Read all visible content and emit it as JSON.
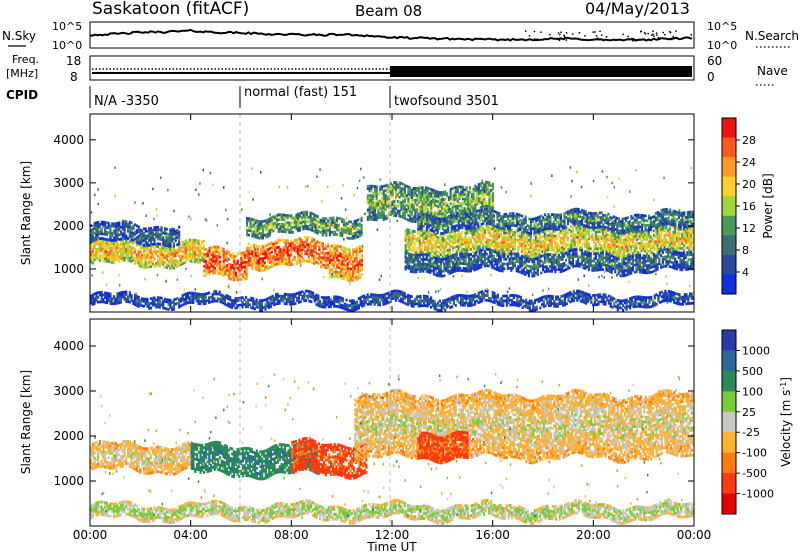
{
  "header": {
    "station": "Saskatoon (fitACF)",
    "beam": "Beam 08",
    "date": "04/May/2013"
  },
  "noise_panel": {
    "left_label": "N.Sky",
    "right_label": "N.Search",
    "left_ticks": [
      "10^5",
      "10^0"
    ],
    "right_ticks": [
      "10^5",
      "10^0"
    ]
  },
  "freq_panel": {
    "left_label_line1": "Freq.",
    "left_label_line2": "[MHz]",
    "left_ticks": [
      "18",
      "8"
    ],
    "right_ticks": [
      "60",
      "0"
    ],
    "right_label": "Nave"
  },
  "cpid_panel": {
    "label": "CPID",
    "segments": [
      {
        "text": "N/A -3350",
        "start_hour": 0,
        "end_hour": 6
      },
      {
        "text": "normal (fast) 151",
        "start_hour": 6,
        "end_hour": 12
      },
      {
        "text": "twofsound 3501",
        "start_hour": 12,
        "end_hour": 24
      }
    ]
  },
  "time_axis": {
    "label": "Time UT",
    "ticks": [
      "00:00",
      "04:00",
      "08:00",
      "12:00",
      "16:00",
      "20:00",
      "00:00"
    ]
  },
  "power_colorbar": {
    "label": "Power [dB]",
    "ticks": [
      "28",
      "24",
      "20",
      "16",
      "12",
      "8",
      "4"
    ],
    "colors": [
      "#ee1111",
      "#ff5a1e",
      "#ff9a2a",
      "#ffcf2e",
      "#9fd63a",
      "#4a9a5a",
      "#3a7070",
      "#2a4aa0",
      "#1030e0"
    ]
  },
  "velocity_colorbar": {
    "label": "Velocity [m s^-1]",
    "ticks": [
      "1000",
      "500",
      "100",
      "25",
      "-25",
      "-100",
      "-500",
      "-1000"
    ],
    "colors": [
      "#2a3aa8",
      "#2a6a9a",
      "#2a8a5a",
      "#7acc3a",
      "#c8c8c0",
      "#ffb030",
      "#ff7a10",
      "#ff3a10",
      "#e80000"
    ]
  },
  "chart_data": {
    "type": "heatmap",
    "title": "Saskatoon (fitACF) Beam 08 04/May/2013",
    "xlabel": "Time UT",
    "ylabel": "Slant Range [km]",
    "x_range_hours": [
      0,
      24
    ],
    "y_range_km": [
      0,
      4600
    ],
    "y_ticks": [
      "4000",
      "3000",
      "2000",
      "1000"
    ],
    "panels": [
      {
        "name": "Power",
        "unit": "dB",
        "bands": [
          {
            "t0": 0.0,
            "t1": 4.5,
            "r_center": 1350,
            "r_half": 260,
            "value": 22
          },
          {
            "t0": 4.5,
            "t1": 6.2,
            "r_center": 1100,
            "r_half": 320,
            "value": 28
          },
          {
            "t0": 6.2,
            "t1": 9.5,
            "r_center": 1350,
            "r_half": 300,
            "value": 28
          },
          {
            "t0": 9.5,
            "t1": 10.8,
            "r_center": 1200,
            "r_half": 380,
            "value": 26
          },
          {
            "t0": 0.0,
            "t1": 3.5,
            "r_center": 1800,
            "r_half": 200,
            "value": 8
          },
          {
            "t0": 6.2,
            "t1": 10.8,
            "r_center": 2000,
            "r_half": 200,
            "value": 14
          },
          {
            "t0": 11.0,
            "t1": 16.0,
            "r_center": 2500,
            "r_half": 400,
            "value": 14
          },
          {
            "t0": 12.5,
            "t1": 24.0,
            "r_center": 1600,
            "r_half": 280,
            "value": 20
          },
          {
            "t0": 12.5,
            "t1": 24.0,
            "r_center": 1150,
            "r_half": 220,
            "value": 8
          },
          {
            "t0": 13.0,
            "t1": 24.0,
            "r_center": 2100,
            "r_half": 180,
            "value": 10
          },
          {
            "t0": 0.0,
            "t1": 24.0,
            "r_center": 250,
            "r_half": 120,
            "value": 6
          }
        ]
      },
      {
        "name": "Velocity",
        "unit": "m s^-1",
        "bands": [
          {
            "t0": 0.0,
            "t1": 4.0,
            "r_center": 1500,
            "r_half": 280,
            "value": 0
          },
          {
            "t0": 4.0,
            "t1": 9.0,
            "r_center": 1450,
            "r_half": 320,
            "value": 300
          },
          {
            "t0": 8.0,
            "t1": 11.0,
            "r_center": 1500,
            "r_half": 350,
            "value": -300
          },
          {
            "t0": 10.5,
            "t1": 24.0,
            "r_center": 2200,
            "r_half": 700,
            "value": 0
          },
          {
            "t0": 13.0,
            "t1": 15.0,
            "r_center": 1800,
            "r_half": 300,
            "value": -300
          },
          {
            "t0": 0.0,
            "t1": 24.0,
            "r_center": 300,
            "r_half": 150,
            "value": 50
          }
        ]
      }
    ],
    "noise_sky_log": [
      2.5,
      2.7,
      3.0,
      3.1,
      3.3,
      3.0,
      2.9,
      2.7,
      2.6,
      2.5,
      2.6,
      2.4,
      2.0,
      1.9,
      1.8,
      1.7,
      1.6,
      1.6,
      1.7,
      1.8,
      1.6,
      1.5,
      1.6,
      1.8,
      1.9
    ],
    "cpid_switch_hours": [
      6,
      12
    ]
  }
}
